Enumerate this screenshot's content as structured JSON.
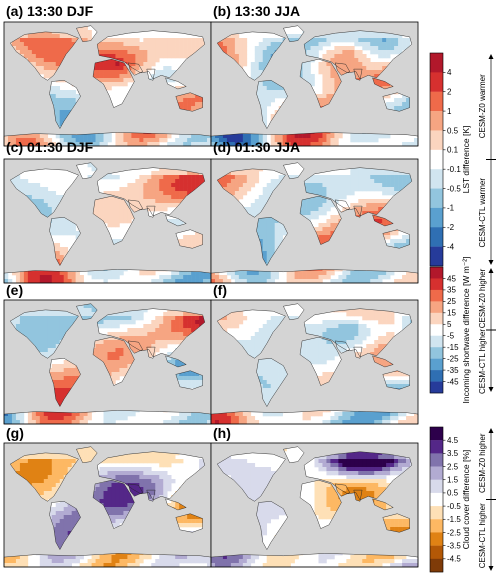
{
  "chart_data": [
    {
      "type": "heatmap",
      "group": "LST",
      "panels": [
        {
          "label": "(a) 13:30 DJF"
        },
        {
          "label": "(b) 13:30 JJA"
        },
        {
          "label": "(c) 01:30 DJF"
        },
        {
          "label": "(d) 01:30 JJA"
        }
      ],
      "colorbar": {
        "title": "LST difference [K]",
        "ticks": [
          "4",
          "2",
          "1",
          "0.5",
          "0.1",
          "-0.1",
          "-0.5",
          "-1",
          "-2",
          "-4"
        ],
        "colors": [
          "#b2182b",
          "#d6302f",
          "#ef6a4a",
          "#f6a582",
          "#fbd5bf",
          "#ffffff",
          "#d1e5f0",
          "#92c5de",
          "#5aa0cf",
          "#2f6fb3",
          "#263b9a"
        ],
        "upper_label": "CESM-Z0 warmer",
        "lower_label": "CESM-CTL warmer"
      }
    },
    {
      "type": "heatmap",
      "group": "SW",
      "panels": [
        {
          "label": "(e)"
        },
        {
          "label": "(f)"
        }
      ],
      "colorbar": {
        "title": "Incoming shortwave difference [W m⁻²]",
        "ticks": [
          "45",
          "35",
          "25",
          "15",
          "5",
          "-5",
          "-15",
          "-25",
          "-35",
          "-45"
        ],
        "colors": [
          "#b2182b",
          "#d6302f",
          "#ef6a4a",
          "#f6a582",
          "#fbd5bf",
          "#ffffff",
          "#d1e5f0",
          "#92c5de",
          "#5aa0cf",
          "#2f6fb3",
          "#263b9a"
        ],
        "upper_label": "CESM-Z0 higher",
        "lower_label": "CESM-CTL higher"
      }
    },
    {
      "type": "heatmap",
      "group": "Cloud",
      "panels": [
        {
          "label": "(g)"
        },
        {
          "label": "(h)"
        }
      ],
      "colorbar": {
        "title": "Cloud cover difference [%]",
        "ticks": [
          "4.5",
          "3.5",
          "2.5",
          "1.5",
          "0.5",
          "-0.5",
          "-1.5",
          "-2.5",
          "-3.5",
          "-4.5"
        ],
        "colors": [
          "#2d004b",
          "#542788",
          "#8073ac",
          "#b2abd2",
          "#d8daeb",
          "#ffffff",
          "#fee0b6",
          "#fdb863",
          "#e08214",
          "#b35806",
          "#7f3b08"
        ],
        "upper_label": "CESM-Z0 higher",
        "lower_label": "CESM-CTL higher"
      }
    }
  ],
  "colors": {
    "ocean": "#d4d4d4",
    "land_neutral": "#ffffff",
    "coastline": "#222222",
    "frame": "#000000"
  }
}
